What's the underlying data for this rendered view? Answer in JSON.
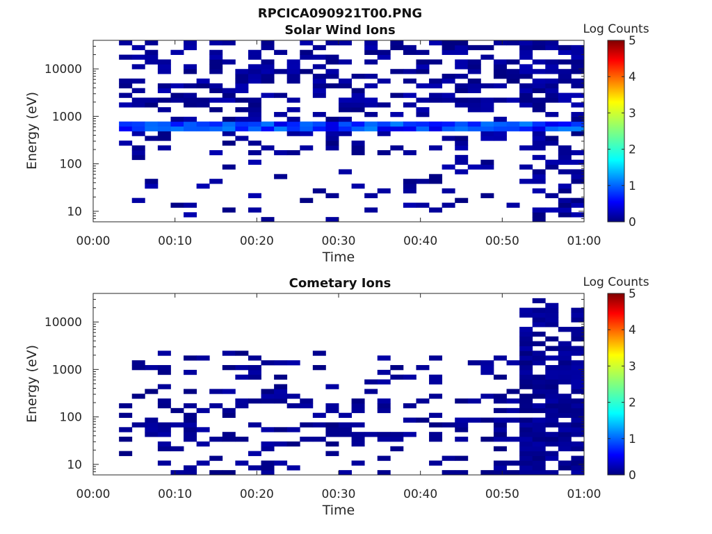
{
  "figure": {
    "title": "RPCICA090921T00.PNG"
  },
  "colorbar": {
    "label": "Log Counts",
    "ticks": [
      "0",
      "1",
      "2",
      "3",
      "4",
      "5"
    ],
    "range": [
      0,
      5
    ],
    "colormap": "jet"
  },
  "chart_data": [
    {
      "type": "heatmap",
      "title": "Solar Wind Ions",
      "xlabel": "Time",
      "ylabel": "Energy (eV)",
      "x_ticks": [
        "00:00",
        "00:10",
        "00:20",
        "00:30",
        "00:40",
        "00:50",
        "01:00"
      ],
      "x_range_min": [
        0,
        60
      ],
      "y_ticks": [
        "10",
        "100",
        "1000",
        "10000"
      ],
      "y_scale": "log",
      "y_range": [
        6,
        40000
      ],
      "value_label": "Log Counts",
      "value_range": [
        0,
        5
      ],
      "solar_wind_band_ev": [
        470,
        700
      ],
      "solar_wind_band_peak_log_counts": 1.3,
      "notes": "Sparse scatter of ~0-0.3 log counts pixels from 3 to 60 min over 10 eV - 40 keV; persistent band near 550-650 eV with values ~0.5-1.3."
    },
    {
      "type": "heatmap",
      "title": "Cometary Ions",
      "xlabel": "Time",
      "ylabel": "Energy (eV)",
      "x_ticks": [
        "00:00",
        "00:10",
        "00:20",
        "00:30",
        "00:40",
        "00:50",
        "01:00"
      ],
      "x_range_min": [
        0,
        60
      ],
      "y_ticks": [
        "10",
        "100",
        "1000",
        "10000"
      ],
      "y_scale": "log",
      "y_range": [
        6,
        40000
      ],
      "value_label": "Log Counts",
      "value_range": [
        0,
        5
      ],
      "notes": "Low-count (~0) pixels below ~2 keV from 3 to 52 min, increasing density after 52 min reaching up to ~20 keV near 01:00."
    }
  ]
}
